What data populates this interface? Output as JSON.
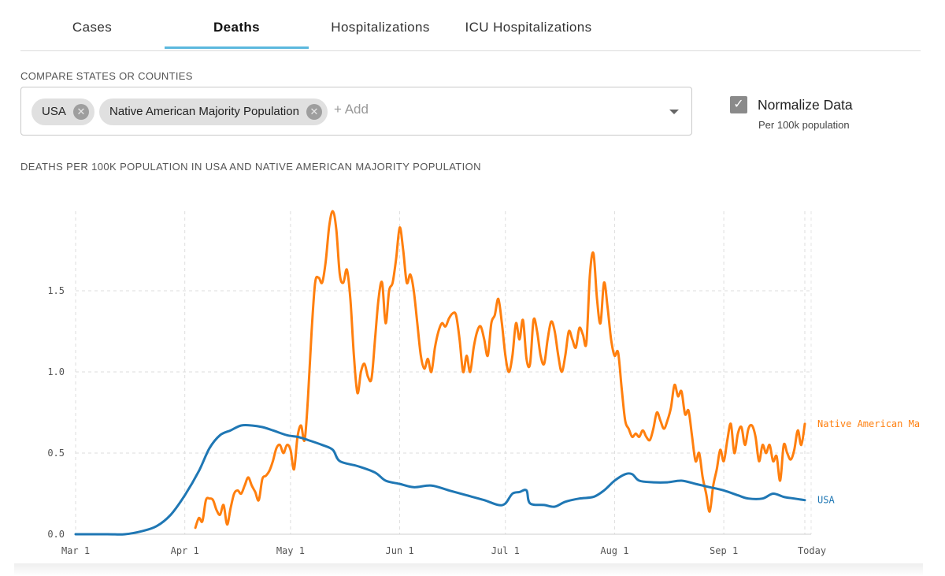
{
  "tabs": [
    {
      "label": "Cases",
      "active": false
    },
    {
      "label": "Deaths",
      "active": true
    },
    {
      "label": "Hospitalizations",
      "active": false
    },
    {
      "label": "ICU Hospitalizations",
      "active": false
    }
  ],
  "compare": {
    "label": "COMPARE STATES OR COUNTIES",
    "chips": [
      "USA",
      "Native American Majority Population"
    ],
    "add_placeholder": "+ Add"
  },
  "normalize": {
    "label": "Normalize Data",
    "sublabel": "Per 100k population",
    "checked": true
  },
  "chart_title": "DEATHS PER 100K POPULATION IN USA AND NATIVE AMERICAN MAJORITY POPULATION",
  "colors": {
    "usa": "#1f77b4",
    "native": "#ff7f0e",
    "tab_accent": "#5bb8de"
  },
  "chart_data": {
    "type": "line",
    "x_ticks": [
      "Mar 1",
      "Apr 1",
      "May 1",
      "Jun 1",
      "Jul 1",
      "Aug 1",
      "Sep 1",
      "Today"
    ],
    "y_ticks": [
      "0.0",
      "0.5",
      "1.0",
      "1.5"
    ],
    "ylim": [
      0,
      1.95
    ],
    "xlim": [
      "2020-03-01",
      "2020-09-24"
    ],
    "grid": true,
    "legend": "end-of-line labels",
    "series": [
      {
        "name": "USA",
        "color": "#1f77b4",
        "points": [
          [
            "2020-03-01",
            0.0
          ],
          [
            "2020-03-10",
            0.0
          ],
          [
            "2020-03-15",
            0.0
          ],
          [
            "2020-03-20",
            0.02
          ],
          [
            "2020-03-24",
            0.05
          ],
          [
            "2020-03-28",
            0.12
          ],
          [
            "2020-04-01",
            0.24
          ],
          [
            "2020-04-05",
            0.39
          ],
          [
            "2020-04-08",
            0.53
          ],
          [
            "2020-04-11",
            0.61
          ],
          [
            "2020-04-14",
            0.64
          ],
          [
            "2020-04-17",
            0.67
          ],
          [
            "2020-04-20",
            0.67
          ],
          [
            "2020-04-23",
            0.66
          ],
          [
            "2020-04-26",
            0.64
          ],
          [
            "2020-04-30",
            0.61
          ],
          [
            "2020-05-03",
            0.6
          ],
          [
            "2020-05-06",
            0.58
          ],
          [
            "2020-05-10",
            0.55
          ],
          [
            "2020-05-13",
            0.52
          ],
          [
            "2020-05-15",
            0.45
          ],
          [
            "2020-05-20",
            0.42
          ],
          [
            "2020-05-25",
            0.38
          ],
          [
            "2020-05-28",
            0.33
          ],
          [
            "2020-06-01",
            0.31
          ],
          [
            "2020-06-05",
            0.29
          ],
          [
            "2020-06-10",
            0.3
          ],
          [
            "2020-06-15",
            0.27
          ],
          [
            "2020-06-20",
            0.24
          ],
          [
            "2020-06-25",
            0.21
          ],
          [
            "2020-06-29",
            0.18
          ],
          [
            "2020-07-01",
            0.19
          ],
          [
            "2020-07-03",
            0.25
          ],
          [
            "2020-07-05",
            0.26
          ],
          [
            "2020-07-07",
            0.27
          ],
          [
            "2020-07-08",
            0.19
          ],
          [
            "2020-07-12",
            0.18
          ],
          [
            "2020-07-15",
            0.17
          ],
          [
            "2020-07-18",
            0.2
          ],
          [
            "2020-07-22",
            0.22
          ],
          [
            "2020-07-26",
            0.23
          ],
          [
            "2020-07-29",
            0.27
          ],
          [
            "2020-08-01",
            0.33
          ],
          [
            "2020-08-04",
            0.37
          ],
          [
            "2020-08-06",
            0.37
          ],
          [
            "2020-08-08",
            0.33
          ],
          [
            "2020-08-12",
            0.32
          ],
          [
            "2020-08-16",
            0.32
          ],
          [
            "2020-08-20",
            0.33
          ],
          [
            "2020-08-24",
            0.31
          ],
          [
            "2020-08-28",
            0.29
          ],
          [
            "2020-09-01",
            0.27
          ],
          [
            "2020-09-05",
            0.24
          ],
          [
            "2020-09-08",
            0.22
          ],
          [
            "2020-09-12",
            0.22
          ],
          [
            "2020-09-15",
            0.25
          ],
          [
            "2020-09-18",
            0.23
          ],
          [
            "2020-09-21",
            0.22
          ],
          [
            "2020-09-24",
            0.21
          ]
        ]
      },
      {
        "name": "Native American Majority Population",
        "color": "#ff7f0e",
        "points": [
          [
            "2020-04-04",
            0.04
          ],
          [
            "2020-04-05",
            0.1
          ],
          [
            "2020-04-06",
            0.08
          ],
          [
            "2020-04-07",
            0.21
          ],
          [
            "2020-04-08",
            0.22
          ],
          [
            "2020-04-09",
            0.21
          ],
          [
            "2020-04-10",
            0.15
          ],
          [
            "2020-04-11",
            0.12
          ],
          [
            "2020-04-12",
            0.18
          ],
          [
            "2020-04-13",
            0.06
          ],
          [
            "2020-04-14",
            0.16
          ],
          [
            "2020-04-15",
            0.25
          ],
          [
            "2020-04-16",
            0.27
          ],
          [
            "2020-04-17",
            0.25
          ],
          [
            "2020-04-18",
            0.3
          ],
          [
            "2020-04-19",
            0.35
          ],
          [
            "2020-04-20",
            0.3
          ],
          [
            "2020-04-21",
            0.26
          ],
          [
            "2020-04-22",
            0.21
          ],
          [
            "2020-04-23",
            0.34
          ],
          [
            "2020-04-24",
            0.36
          ],
          [
            "2020-04-25",
            0.39
          ],
          [
            "2020-04-26",
            0.45
          ],
          [
            "2020-04-27",
            0.53
          ],
          [
            "2020-04-28",
            0.55
          ],
          [
            "2020-04-29",
            0.5
          ],
          [
            "2020-04-30",
            0.55
          ],
          [
            "2020-05-01",
            0.52
          ],
          [
            "2020-05-02",
            0.4
          ],
          [
            "2020-05-03",
            0.6
          ],
          [
            "2020-05-04",
            0.67
          ],
          [
            "2020-05-05",
            0.58
          ],
          [
            "2020-05-06",
            0.85
          ],
          [
            "2020-05-07",
            1.25
          ],
          [
            "2020-05-08",
            1.55
          ],
          [
            "2020-05-09",
            1.58
          ],
          [
            "2020-05-10",
            1.55
          ],
          [
            "2020-05-11",
            1.68
          ],
          [
            "2020-05-12",
            1.9
          ],
          [
            "2020-05-13",
            1.99
          ],
          [
            "2020-05-14",
            1.88
          ],
          [
            "2020-05-15",
            1.6
          ],
          [
            "2020-05-16",
            1.55
          ],
          [
            "2020-05-17",
            1.63
          ],
          [
            "2020-05-18",
            1.45
          ],
          [
            "2020-05-19",
            1.1
          ],
          [
            "2020-05-20",
            0.87
          ],
          [
            "2020-05-21",
            1.0
          ],
          [
            "2020-05-22",
            1.05
          ],
          [
            "2020-05-23",
            0.97
          ],
          [
            "2020-05-24",
            0.96
          ],
          [
            "2020-05-25",
            1.2
          ],
          [
            "2020-05-26",
            1.45
          ],
          [
            "2020-05-27",
            1.55
          ],
          [
            "2020-05-28",
            1.3
          ],
          [
            "2020-05-29",
            1.5
          ],
          [
            "2020-05-30",
            1.55
          ],
          [
            "2020-05-31",
            1.7
          ],
          [
            "2020-06-01",
            1.89
          ],
          [
            "2020-06-02",
            1.75
          ],
          [
            "2020-06-03",
            1.55
          ],
          [
            "2020-06-04",
            1.6
          ],
          [
            "2020-06-05",
            1.5
          ],
          [
            "2020-06-06",
            1.3
          ],
          [
            "2020-06-07",
            1.1
          ],
          [
            "2020-06-08",
            1.02
          ],
          [
            "2020-06-09",
            1.08
          ],
          [
            "2020-06-10",
            1.0
          ],
          [
            "2020-06-11",
            1.15
          ],
          [
            "2020-06-12",
            1.25
          ],
          [
            "2020-06-13",
            1.3
          ],
          [
            "2020-06-14",
            1.28
          ],
          [
            "2020-06-15",
            1.33
          ],
          [
            "2020-06-16",
            1.36
          ],
          [
            "2020-06-17",
            1.35
          ],
          [
            "2020-06-18",
            1.2
          ],
          [
            "2020-06-19",
            1.0
          ],
          [
            "2020-06-20",
            1.1
          ],
          [
            "2020-06-21",
            1.0
          ],
          [
            "2020-06-22",
            1.15
          ],
          [
            "2020-06-23",
            1.25
          ],
          [
            "2020-06-24",
            1.28
          ],
          [
            "2020-06-25",
            1.2
          ],
          [
            "2020-06-26",
            1.1
          ],
          [
            "2020-06-27",
            1.3
          ],
          [
            "2020-06-28",
            1.35
          ],
          [
            "2020-06-29",
            1.45
          ],
          [
            "2020-06-30",
            1.3
          ],
          [
            "2020-07-01",
            1.1
          ],
          [
            "2020-07-02",
            1.0
          ],
          [
            "2020-07-03",
            1.1
          ],
          [
            "2020-07-04",
            1.3
          ],
          [
            "2020-07-05",
            1.2
          ],
          [
            "2020-07-06",
            1.32
          ],
          [
            "2020-07-07",
            1.08
          ],
          [
            "2020-07-08",
            1.05
          ],
          [
            "2020-07-09",
            1.32
          ],
          [
            "2020-07-10",
            1.25
          ],
          [
            "2020-07-11",
            1.1
          ],
          [
            "2020-07-12",
            1.05
          ],
          [
            "2020-07-13",
            1.2
          ],
          [
            "2020-07-14",
            1.31
          ],
          [
            "2020-07-15",
            1.25
          ],
          [
            "2020-07-16",
            1.1
          ],
          [
            "2020-07-17",
            1.0
          ],
          [
            "2020-07-18",
            1.1
          ],
          [
            "2020-07-19",
            1.25
          ],
          [
            "2020-07-20",
            1.2
          ],
          [
            "2020-07-21",
            1.15
          ],
          [
            "2020-07-22",
            1.27
          ],
          [
            "2020-07-23",
            1.23
          ],
          [
            "2020-07-24",
            1.18
          ],
          [
            "2020-07-25",
            1.6
          ],
          [
            "2020-07-26",
            1.73
          ],
          [
            "2020-07-27",
            1.45
          ],
          [
            "2020-07-28",
            1.3
          ],
          [
            "2020-07-29",
            1.55
          ],
          [
            "2020-07-30",
            1.4
          ],
          [
            "2020-07-31",
            1.2
          ],
          [
            "2020-08-01",
            1.1
          ],
          [
            "2020-08-02",
            1.12
          ],
          [
            "2020-08-03",
            0.9
          ],
          [
            "2020-08-04",
            0.7
          ],
          [
            "2020-08-05",
            0.65
          ],
          [
            "2020-08-06",
            0.6
          ],
          [
            "2020-08-07",
            0.62
          ],
          [
            "2020-08-08",
            0.6
          ],
          [
            "2020-08-09",
            0.64
          ],
          [
            "2020-08-10",
            0.6
          ],
          [
            "2020-08-11",
            0.58
          ],
          [
            "2020-08-12",
            0.65
          ],
          [
            "2020-08-13",
            0.75
          ],
          [
            "2020-08-14",
            0.7
          ],
          [
            "2020-08-15",
            0.65
          ],
          [
            "2020-08-16",
            0.7
          ],
          [
            "2020-08-17",
            0.78
          ],
          [
            "2020-08-18",
            0.92
          ],
          [
            "2020-08-19",
            0.85
          ],
          [
            "2020-08-20",
            0.88
          ],
          [
            "2020-08-21",
            0.74
          ],
          [
            "2020-08-22",
            0.76
          ],
          [
            "2020-08-23",
            0.6
          ],
          [
            "2020-08-24",
            0.45
          ],
          [
            "2020-08-25",
            0.5
          ],
          [
            "2020-08-26",
            0.35
          ],
          [
            "2020-08-27",
            0.25
          ],
          [
            "2020-08-28",
            0.14
          ],
          [
            "2020-08-29",
            0.3
          ],
          [
            "2020-08-30",
            0.4
          ],
          [
            "2020-08-31",
            0.52
          ],
          [
            "2020-09-01",
            0.45
          ],
          [
            "2020-09-02",
            0.58
          ],
          [
            "2020-09-03",
            0.68
          ],
          [
            "2020-09-04",
            0.5
          ],
          [
            "2020-09-05",
            0.62
          ],
          [
            "2020-09-06",
            0.66
          ],
          [
            "2020-09-07",
            0.55
          ],
          [
            "2020-09-08",
            0.65
          ],
          [
            "2020-09-09",
            0.67
          ],
          [
            "2020-09-10",
            0.6
          ],
          [
            "2020-09-11",
            0.45
          ],
          [
            "2020-09-12",
            0.55
          ],
          [
            "2020-09-13",
            0.5
          ],
          [
            "2020-09-14",
            0.55
          ],
          [
            "2020-09-15",
            0.45
          ],
          [
            "2020-09-16",
            0.48
          ],
          [
            "2020-09-17",
            0.33
          ],
          [
            "2020-09-18",
            0.55
          ],
          [
            "2020-09-19",
            0.5
          ],
          [
            "2020-09-20",
            0.46
          ],
          [
            "2020-09-21",
            0.52
          ],
          [
            "2020-09-22",
            0.64
          ],
          [
            "2020-09-23",
            0.55
          ],
          [
            "2020-09-24",
            0.68
          ]
        ]
      }
    ],
    "end_labels": [
      {
        "series": "Native American Majority Population",
        "text": "Native American Ma"
      },
      {
        "series": "USA",
        "text": "USA"
      }
    ]
  }
}
